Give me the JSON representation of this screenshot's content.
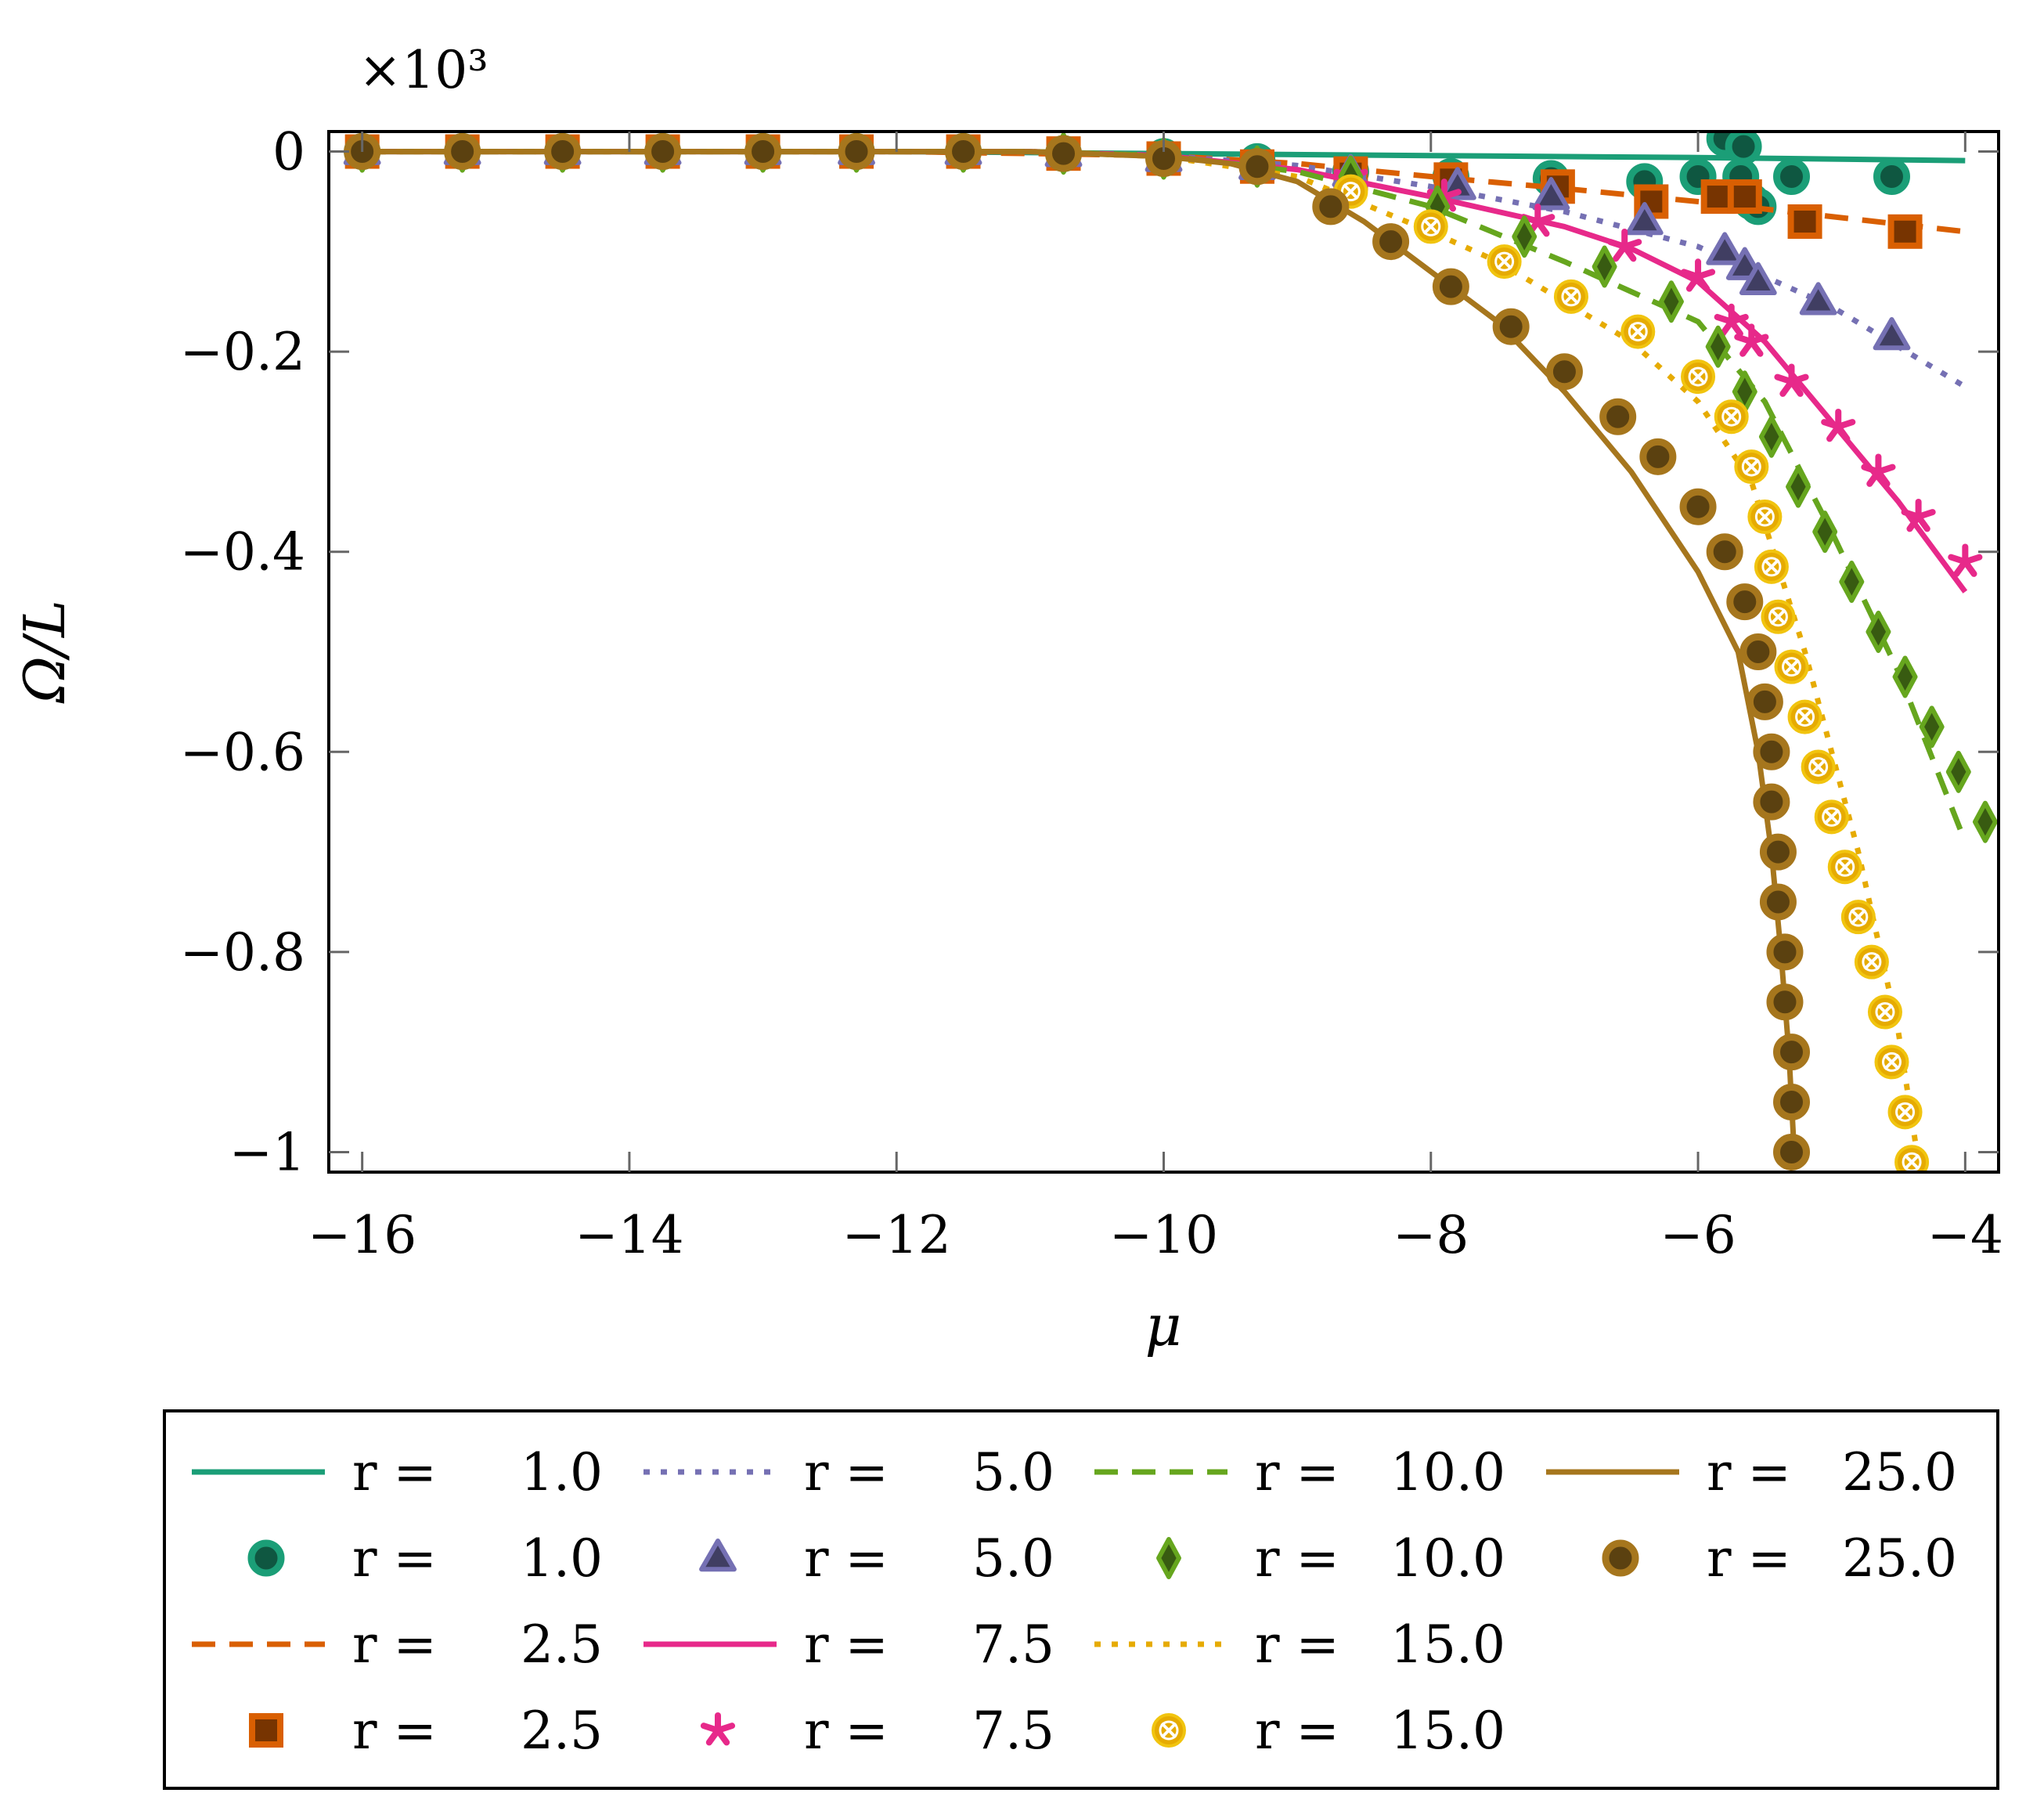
{
  "chart_data": {
    "type": "line",
    "title": "",
    "xlabel": "μ",
    "ylabel": "Ω/L",
    "y_scale_label": "×10³",
    "xlim": [
      -16.25,
      -3.75
    ],
    "ylim": [
      -1.02,
      0.02
    ],
    "x_ticks": [
      -16,
      -14,
      -12,
      -10,
      -8,
      -6,
      -4
    ],
    "x_tick_labels": [
      "−16",
      "−14",
      "−12",
      "−10",
      "−8",
      "−6",
      "−4"
    ],
    "y_ticks": [
      0,
      -0.2,
      -0.4,
      -0.6,
      -0.8,
      -1
    ],
    "y_tick_labels": [
      "0",
      "−0.2",
      "−0.4",
      "−0.6",
      "−0.8",
      "−1"
    ],
    "grid": false,
    "legend_position": "bottom",
    "series": [
      {
        "name": "r = 1.0",
        "r_label": "r =",
        "r_value": "1.0",
        "color": "#1b9e77",
        "dash": "solid",
        "marker": "circle",
        "line": [
          [
            -16,
            0.0
          ],
          [
            -12,
            0.0
          ],
          [
            -10,
            -0.002
          ],
          [
            -8,
            -0.004
          ],
          [
            -6,
            -0.006
          ],
          [
            -4,
            -0.009
          ]
        ],
        "points": [
          [
            -16,
            0.0
          ],
          [
            -15.25,
            0.0
          ],
          [
            -14.5,
            0.0
          ],
          [
            -13.75,
            0.0
          ],
          [
            -13,
            0.0
          ],
          [
            -12.3,
            0.0
          ],
          [
            -11.5,
            0.0
          ],
          [
            -10.75,
            -0.002
          ],
          [
            -10,
            -0.005
          ],
          [
            -9.3,
            -0.01
          ],
          [
            -8.6,
            -0.02
          ],
          [
            -7.85,
            -0.025
          ],
          [
            -7.1,
            -0.027
          ],
          [
            -6.4,
            -0.03
          ],
          [
            -6.0,
            -0.025
          ],
          [
            -5.8,
            0.013
          ],
          [
            -5.68,
            -0.025
          ],
          [
            -5.66,
            0.005
          ],
          [
            -5.6,
            -0.05
          ],
          [
            -5.55,
            -0.055
          ],
          [
            -5.3,
            -0.025
          ],
          [
            -4.55,
            -0.025
          ]
        ]
      },
      {
        "name": "r = 2.5",
        "r_label": "r =",
        "r_value": "2.5",
        "color": "#d95f02",
        "dash": "dashed",
        "marker": "square",
        "line": [
          [
            -16,
            0.0
          ],
          [
            -12,
            0.0
          ],
          [
            -10,
            -0.004
          ],
          [
            -9,
            -0.012
          ],
          [
            -8,
            -0.025
          ],
          [
            -7,
            -0.037
          ],
          [
            -6,
            -0.05
          ],
          [
            -5,
            -0.065
          ],
          [
            -4,
            -0.08
          ]
        ],
        "points": [
          [
            -16,
            0.0
          ],
          [
            -15.25,
            0.0
          ],
          [
            -14.5,
            0.0
          ],
          [
            -13.75,
            0.0
          ],
          [
            -13,
            0.0
          ],
          [
            -12.3,
            0.0
          ],
          [
            -11.5,
            0.0
          ],
          [
            -10.75,
            -0.002
          ],
          [
            -10,
            -0.007
          ],
          [
            -9.3,
            -0.015
          ],
          [
            -8.6,
            -0.022
          ],
          [
            -7.85,
            -0.028
          ],
          [
            -7.05,
            -0.035
          ],
          [
            -6.35,
            -0.05
          ],
          [
            -5.85,
            -0.045
          ],
          [
            -5.65,
            -0.045
          ],
          [
            -5.2,
            -0.07
          ],
          [
            -4.45,
            -0.08
          ]
        ]
      },
      {
        "name": "r = 5.0",
        "r_label": "r =",
        "r_value": "5.0",
        "color": "#7570b3",
        "dash": "dotted",
        "marker": "triangle",
        "line": [
          [
            -16,
            0.0
          ],
          [
            -11,
            0.0
          ],
          [
            -10,
            -0.004
          ],
          [
            -9,
            -0.014
          ],
          [
            -8,
            -0.035
          ],
          [
            -7,
            -0.06
          ],
          [
            -6,
            -0.095
          ],
          [
            -5,
            -0.155
          ],
          [
            -4,
            -0.235
          ]
        ],
        "points": [
          [
            -16,
            0.0
          ],
          [
            -15.25,
            0.0
          ],
          [
            -14.5,
            0.0
          ],
          [
            -13.75,
            0.0
          ],
          [
            -13,
            0.0
          ],
          [
            -12.3,
            0.0
          ],
          [
            -11.5,
            0.0
          ],
          [
            -10.75,
            -0.002
          ],
          [
            -10,
            -0.007
          ],
          [
            -9.3,
            -0.015
          ],
          [
            -8.6,
            -0.022
          ],
          [
            -7.8,
            -0.035
          ],
          [
            -7.1,
            -0.045
          ],
          [
            -6.4,
            -0.07
          ],
          [
            -5.8,
            -0.1
          ],
          [
            -5.65,
            -0.115
          ],
          [
            -5.55,
            -0.13
          ],
          [
            -5.1,
            -0.15
          ],
          [
            -4.55,
            -0.185
          ]
        ]
      },
      {
        "name": "r = 7.5",
        "r_label": "r =",
        "r_value": "7.5",
        "color": "#e7298a",
        "dash": "solid",
        "marker": "star",
        "line": [
          [
            -16,
            0.0
          ],
          [
            -11,
            0.0
          ],
          [
            -10,
            -0.004
          ],
          [
            -9,
            -0.018
          ],
          [
            -8,
            -0.045
          ],
          [
            -7,
            -0.075
          ],
          [
            -6.5,
            -0.097
          ],
          [
            -6,
            -0.13
          ],
          [
            -5.5,
            -0.19
          ],
          [
            -5,
            -0.27
          ],
          [
            -4.5,
            -0.35
          ],
          [
            -4,
            -0.44
          ]
        ],
        "points": [
          [
            -16,
            0.0
          ],
          [
            -15.25,
            0.0
          ],
          [
            -14.5,
            0.0
          ],
          [
            -13.75,
            0.0
          ],
          [
            -13,
            0.0
          ],
          [
            -12.3,
            0.0
          ],
          [
            -11.5,
            0.0
          ],
          [
            -10.75,
            -0.002
          ],
          [
            -10,
            -0.007
          ],
          [
            -9.3,
            -0.015
          ],
          [
            -8.6,
            -0.025
          ],
          [
            -7.9,
            -0.045
          ],
          [
            -7.2,
            -0.07
          ],
          [
            -6.55,
            -0.095
          ],
          [
            -6.0,
            -0.125
          ],
          [
            -5.75,
            -0.17
          ],
          [
            -5.6,
            -0.19
          ],
          [
            -5.3,
            -0.23
          ],
          [
            -4.95,
            -0.275
          ],
          [
            -4.65,
            -0.32
          ],
          [
            -4.35,
            -0.365
          ],
          [
            -4.0,
            -0.41
          ]
        ]
      },
      {
        "name": "r = 10.0",
        "r_label": "r =",
        "r_value": "10.0",
        "color": "#66a61e",
        "dash": "dashed",
        "marker": "diamond",
        "line": [
          [
            -16,
            0.0
          ],
          [
            -11,
            0.0
          ],
          [
            -10,
            -0.004
          ],
          [
            -9,
            -0.02
          ],
          [
            -8,
            -0.055
          ],
          [
            -7,
            -0.11
          ],
          [
            -6.5,
            -0.14
          ],
          [
            -6,
            -0.17
          ],
          [
            -5.5,
            -0.25
          ],
          [
            -5,
            -0.38
          ],
          [
            -4.5,
            -0.52
          ],
          [
            -4,
            -0.69
          ]
        ],
        "points": [
          [
            -16,
            0.0
          ],
          [
            -15.25,
            0.0
          ],
          [
            -14.5,
            0.0
          ],
          [
            -13.75,
            0.0
          ],
          [
            -13,
            0.0
          ],
          [
            -12.3,
            0.0
          ],
          [
            -11.5,
            0.0
          ],
          [
            -10.75,
            -0.002
          ],
          [
            -10,
            -0.007
          ],
          [
            -9.3,
            -0.015
          ],
          [
            -8.6,
            -0.025
          ],
          [
            -7.95,
            -0.055
          ],
          [
            -7.3,
            -0.085
          ],
          [
            -6.7,
            -0.115
          ],
          [
            -6.2,
            -0.15
          ],
          [
            -5.85,
            -0.195
          ],
          [
            -5.65,
            -0.24
          ],
          [
            -5.45,
            -0.285
          ],
          [
            -5.25,
            -0.335
          ],
          [
            -5.05,
            -0.38
          ],
          [
            -4.85,
            -0.43
          ],
          [
            -4.65,
            -0.48
          ],
          [
            -4.45,
            -0.525
          ],
          [
            -4.25,
            -0.575
          ],
          [
            -4.05,
            -0.62
          ],
          [
            -3.85,
            -0.67
          ]
        ]
      },
      {
        "name": "r = 15.0",
        "r_label": "r =",
        "r_value": "15.0",
        "color": "#e6ab02",
        "dash": "dotted",
        "marker": "circle-cross",
        "line": [
          [
            -16,
            0.0
          ],
          [
            -11,
            0.0
          ],
          [
            -10,
            -0.005
          ],
          [
            -9,
            -0.025
          ],
          [
            -8,
            -0.08
          ],
          [
            -7.5,
            -0.11
          ],
          [
            -7,
            -0.15
          ],
          [
            -6.5,
            -0.19
          ],
          [
            -6,
            -0.25
          ],
          [
            -5.6,
            -0.33
          ],
          [
            -5.2,
            -0.5
          ],
          [
            -4.8,
            -0.7
          ],
          [
            -4.5,
            -0.88
          ],
          [
            -4.35,
            -1.01
          ]
        ],
        "points": [
          [
            -16,
            0.0
          ],
          [
            -15.25,
            0.0
          ],
          [
            -14.5,
            0.0
          ],
          [
            -13.75,
            0.0
          ],
          [
            -13,
            0.0
          ],
          [
            -12.3,
            0.0
          ],
          [
            -11.5,
            0.0
          ],
          [
            -10.75,
            -0.002
          ],
          [
            -10,
            -0.007
          ],
          [
            -9.3,
            -0.015
          ],
          [
            -8.6,
            -0.04
          ],
          [
            -8.0,
            -0.075
          ],
          [
            -7.45,
            -0.11
          ],
          [
            -6.95,
            -0.145
          ],
          [
            -6.45,
            -0.18
          ],
          [
            -6.0,
            -0.225
          ],
          [
            -5.75,
            -0.265
          ],
          [
            -5.6,
            -0.315
          ],
          [
            -5.5,
            -0.365
          ],
          [
            -5.45,
            -0.415
          ],
          [
            -5.4,
            -0.465
          ],
          [
            -5.3,
            -0.515
          ],
          [
            -5.2,
            -0.565
          ],
          [
            -5.1,
            -0.615
          ],
          [
            -5.0,
            -0.665
          ],
          [
            -4.9,
            -0.715
          ],
          [
            -4.8,
            -0.765
          ],
          [
            -4.7,
            -0.81
          ],
          [
            -4.6,
            -0.86
          ],
          [
            -4.55,
            -0.91
          ],
          [
            -4.45,
            -0.96
          ],
          [
            -4.4,
            -1.01
          ]
        ]
      },
      {
        "name": "r = 25.0",
        "r_label": "r =",
        "r_value": "25.0",
        "color": "#a6761d",
        "dash": "solid",
        "marker": "circle",
        "line": [
          [
            -16,
            0.0
          ],
          [
            -11,
            0.0
          ],
          [
            -10,
            -0.005
          ],
          [
            -9.5,
            -0.012
          ],
          [
            -9,
            -0.03
          ],
          [
            -8.5,
            -0.07
          ],
          [
            -8,
            -0.12
          ],
          [
            -7.5,
            -0.17
          ],
          [
            -7,
            -0.24
          ],
          [
            -6.5,
            -0.32
          ],
          [
            -6,
            -0.42
          ],
          [
            -5.7,
            -0.5
          ],
          [
            -5.55,
            -0.6
          ],
          [
            -5.45,
            -0.7
          ],
          [
            -5.38,
            -0.8
          ],
          [
            -5.32,
            -0.9
          ],
          [
            -5.28,
            -1.0
          ]
        ],
        "points": [
          [
            -16,
            0.0
          ],
          [
            -15.25,
            0.0
          ],
          [
            -14.5,
            0.0
          ],
          [
            -13.75,
            0.0
          ],
          [
            -13,
            0.0
          ],
          [
            -12.3,
            0.0
          ],
          [
            -11.5,
            0.0
          ],
          [
            -10.75,
            -0.002
          ],
          [
            -10,
            -0.007
          ],
          [
            -9.3,
            -0.015
          ],
          [
            -8.75,
            -0.055
          ],
          [
            -8.3,
            -0.09
          ],
          [
            -7.85,
            -0.135
          ],
          [
            -7.4,
            -0.175
          ],
          [
            -7.0,
            -0.22
          ],
          [
            -6.6,
            -0.265
          ],
          [
            -6.3,
            -0.305
          ],
          [
            -6.0,
            -0.355
          ],
          [
            -5.8,
            -0.4
          ],
          [
            -5.65,
            -0.45
          ],
          [
            -5.55,
            -0.5
          ],
          [
            -5.5,
            -0.55
          ],
          [
            -5.45,
            -0.6
          ],
          [
            -5.45,
            -0.65
          ],
          [
            -5.4,
            -0.7
          ],
          [
            -5.4,
            -0.75
          ],
          [
            -5.35,
            -0.8
          ],
          [
            -5.35,
            -0.85
          ],
          [
            -5.3,
            -0.9
          ],
          [
            -5.3,
            -0.95
          ],
          [
            -5.3,
            -1.0
          ]
        ]
      }
    ],
    "legend_columns": [
      [
        "1.0 line",
        "1.0 mark",
        "2.5 line",
        "2.5 mark"
      ],
      [
        "5.0 line",
        "5.0 mark",
        "7.5 line",
        "7.5 mark"
      ],
      [
        "10.0 line",
        "10.0 mark",
        "15.0 line",
        "15.0 mark"
      ],
      [
        "25.0 line",
        "25.0 mark"
      ]
    ]
  }
}
